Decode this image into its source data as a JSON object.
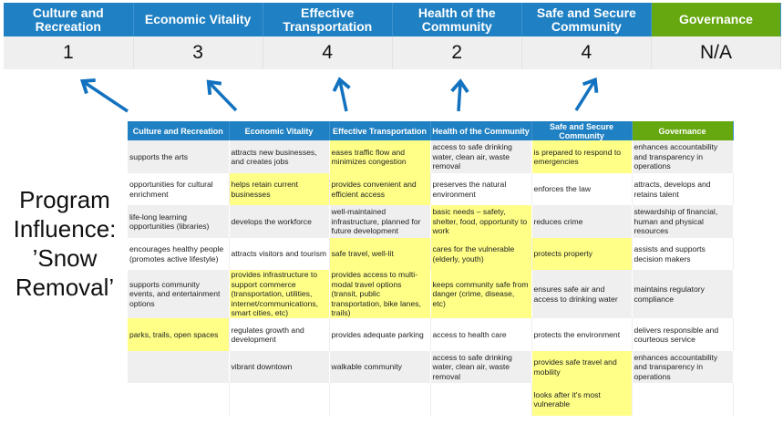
{
  "summary": {
    "headers": [
      "Culture and Recreation",
      "Economic Vitality",
      "Effective Transportation",
      "Health of the Community",
      "Safe and Secure Community",
      "Governance"
    ],
    "scores": [
      "1",
      "3",
      "4",
      "2",
      "4",
      "N/A"
    ]
  },
  "title": [
    "Program",
    "Influence:",
    "’Snow",
    "Removal’"
  ],
  "colors": {
    "header_blue": "#1f80c3",
    "governance_green": "#66a80f",
    "highlight": "#ffff88",
    "arrow": "#1272bf"
  },
  "detail": {
    "headers": [
      "Culture and Recreation",
      "Economic Vitality",
      "Effective Transportation",
      "Health of the Community",
      "Safe and Secure Community",
      "Governance"
    ],
    "rows": [
      {
        "cells": [
          "supports the arts",
          "attracts new businesses, and creates jobs",
          "eases traffic flow and minimizes congestion",
          "access to safe drinking water, clean air, waste removal",
          "is prepared to respond to emergencies",
          "enhances accountability and transparency in operations"
        ],
        "highlighted": [
          false,
          false,
          true,
          false,
          true,
          false
        ]
      },
      {
        "cells": [
          "opportunities for cultural enrichment",
          "helps retain current businesses",
          "provides convenient and efficient access",
          "preserves the natural environment",
          "enforces the law",
          "attracts, develops and retains talent"
        ],
        "highlighted": [
          false,
          true,
          true,
          false,
          false,
          false
        ]
      },
      {
        "cells": [
          "life-long learning opportunities (libraries)",
          "develops the workforce",
          "well-maintained infrastructure, planned for future development",
          "basic needs – safety, shelter, food, opportunity to work",
          "reduces crime",
          "stewardship of financial, human and physical resources"
        ],
        "highlighted": [
          false,
          false,
          false,
          true,
          false,
          false
        ]
      },
      {
        "cells": [
          "encourages healthy people (promotes active lifestyle)",
          "attracts visitors and tourism",
          "safe travel, well-lit",
          "cares for the vulnerable (elderly, youth)",
          "protects property",
          "assists and supports decision makers"
        ],
        "highlighted": [
          false,
          false,
          true,
          true,
          true,
          false
        ]
      },
      {
        "cells": [
          "supports community events, and entertainment options",
          "provides infrastructure to support commerce (transportation, utilities, internet/communications, smart cities, etc)",
          "provides access to multi-modal travel options (transit, public transportation, bike lanes, trails)",
          "keeps community safe from danger (crime, disease, etc)",
          "ensures safe air and access to drinking water",
          "maintains regulatory compliance"
        ],
        "highlighted": [
          false,
          true,
          true,
          true,
          false,
          false
        ]
      },
      {
        "cells": [
          "parks, trails, open spaces",
          "regulates growth and development",
          "provides adequate parking",
          "access to health care",
          "protects the environment",
          "delivers responsible and courteous service"
        ],
        "highlighted": [
          true,
          false,
          false,
          false,
          false,
          false
        ]
      },
      {
        "cells": [
          "",
          "vibrant downtown",
          "walkable community",
          "access to safe drinking water, clean air, waste removal",
          "provides safe travel and mobility",
          "enhances accountability and transparency in operations"
        ],
        "highlighted": [
          false,
          false,
          false,
          false,
          true,
          false
        ]
      },
      {
        "cells": [
          "",
          "",
          "",
          "",
          "looks after it's most vulnerable",
          ""
        ],
        "highlighted": [
          false,
          false,
          false,
          false,
          true,
          false
        ]
      }
    ]
  }
}
